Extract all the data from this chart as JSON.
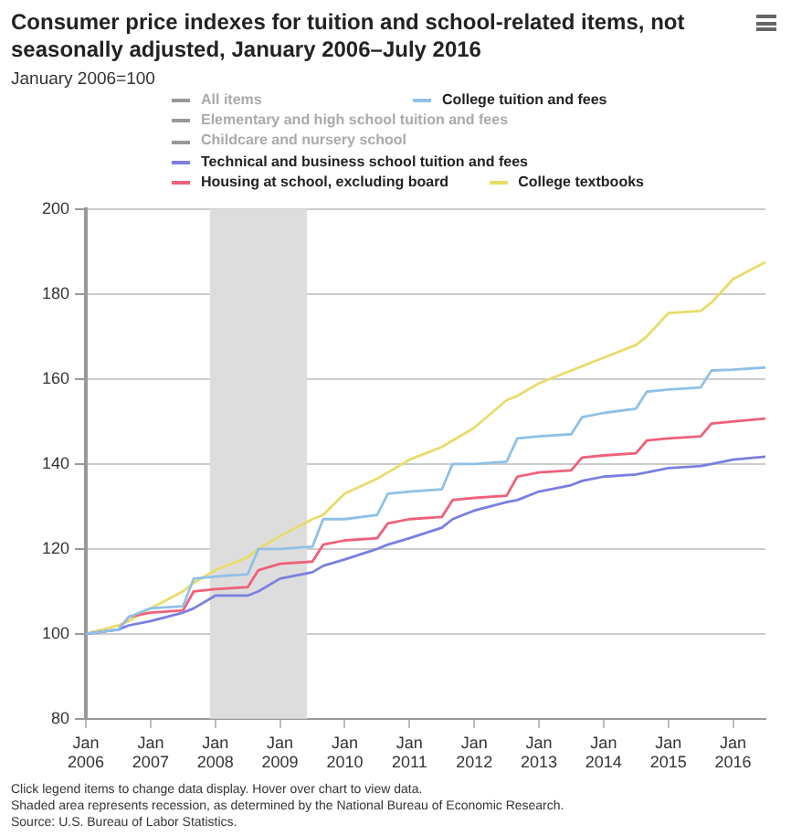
{
  "chart_data": {
    "type": "line",
    "title": "Consumer price indexes for tuition and school-related items, not seasonally adjusted, January 2006–July 2016",
    "subtitle": "January 2006=100",
    "x": [
      "2006-01",
      "2006-07",
      "2006-09",
      "2007-01",
      "2007-07",
      "2007-09",
      "2008-01",
      "2008-07",
      "2008-09",
      "2009-01",
      "2009-07",
      "2009-09",
      "2010-01",
      "2010-07",
      "2010-09",
      "2011-01",
      "2011-07",
      "2011-09",
      "2012-01",
      "2012-07",
      "2012-09",
      "2013-01",
      "2013-07",
      "2013-09",
      "2014-01",
      "2014-07",
      "2014-09",
      "2015-01",
      "2015-07",
      "2015-09",
      "2016-01",
      "2016-07"
    ],
    "series": [
      {
        "name": "All items",
        "color": "#999999",
        "values": [
          null,
          null,
          null,
          null,
          null,
          null,
          null,
          null,
          null,
          null,
          null,
          null,
          null,
          null,
          null,
          null,
          null,
          null,
          null,
          null,
          null,
          null,
          null,
          null,
          null,
          null,
          null,
          null,
          null,
          null,
          null,
          null
        ]
      },
      {
        "name": "College tuition and fees",
        "color": "#8fc1e8",
        "values": [
          100,
          101,
          104,
          106,
          106.5,
          113,
          113.5,
          114,
          120,
          120,
          120.5,
          127,
          127,
          128,
          133,
          133.5,
          134,
          140,
          140,
          140.5,
          146,
          146.5,
          147,
          151,
          152,
          153,
          157,
          157.5,
          158,
          162,
          162.2,
          162.7
        ]
      },
      {
        "name": "Elementary and high school tuition and fees",
        "color": "#999999",
        "values": [
          null,
          null,
          null,
          null,
          null,
          null,
          null,
          null,
          null,
          null,
          null,
          null,
          null,
          null,
          null,
          null,
          null,
          null,
          null,
          null,
          null,
          null,
          null,
          null,
          null,
          null,
          null,
          null,
          null,
          null,
          null,
          null
        ]
      },
      {
        "name": "Childcare and nursery school",
        "color": "#999999",
        "values": [
          null,
          null,
          null,
          null,
          null,
          null,
          null,
          null,
          null,
          null,
          null,
          null,
          null,
          null,
          null,
          null,
          null,
          null,
          null,
          null,
          null,
          null,
          null,
          null,
          null,
          null,
          null,
          null,
          null,
          null,
          null,
          null
        ]
      },
      {
        "name": "Technical and business school tuition and fees",
        "color": "#7a7fe0",
        "values": [
          100,
          101,
          102,
          103,
          105,
          106,
          109,
          109,
          110,
          113,
          114.5,
          116,
          117.5,
          120,
          121,
          122.5,
          125,
          127,
          129,
          131,
          131.5,
          133.5,
          135,
          136,
          137,
          137.5,
          138,
          139,
          139.5,
          140,
          141,
          141.7
        ]
      },
      {
        "name": "Housing at school, excluding board",
        "color": "#f0607a",
        "values": [
          100,
          101,
          104,
          105,
          105.5,
          110,
          110.5,
          111,
          115,
          116.5,
          117,
          121,
          122,
          122.5,
          126,
          127,
          127.5,
          131.5,
          132,
          132.5,
          137,
          138,
          138.5,
          141.5,
          142,
          142.5,
          145.5,
          146,
          146.5,
          149.5,
          150,
          150.7
        ]
      },
      {
        "name": "College textbooks",
        "color": "#e8dc6a",
        "values": [
          100,
          102,
          103,
          106,
          110,
          112,
          115,
          118,
          120,
          123,
          127,
          128,
          133,
          136.5,
          138,
          141,
          144,
          145.5,
          148.5,
          155,
          156,
          159,
          162,
          163,
          165,
          168,
          170,
          175.5,
          176,
          178,
          183.5,
          187.5
        ]
      }
    ],
    "xlim": [
      "2006-01",
      "2016-07"
    ],
    "xticks": [
      {
        "value": "2006-01",
        "label": "Jan 2006"
      },
      {
        "value": "2007-01",
        "label": "Jan 2007"
      },
      {
        "value": "2008-01",
        "label": "Jan 2008"
      },
      {
        "value": "2009-01",
        "label": "Jan 2009"
      },
      {
        "value": "2010-01",
        "label": "Jan 2010"
      },
      {
        "value": "2011-01",
        "label": "Jan 2011"
      },
      {
        "value": "2012-01",
        "label": "Jan 2012"
      },
      {
        "value": "2013-01",
        "label": "Jan 2013"
      },
      {
        "value": "2014-01",
        "label": "Jan 2014"
      },
      {
        "value": "2015-01",
        "label": "Jan 2015"
      },
      {
        "value": "2016-01",
        "label": "Jan 2016"
      }
    ],
    "ylim": [
      80,
      200
    ],
    "yticks": [
      80,
      100,
      120,
      140,
      160,
      180,
      200
    ],
    "bands": [
      {
        "axis": "x",
        "from": "2007-12",
        "to": "2009-06",
        "color": "#dddddd"
      }
    ],
    "grid": "y",
    "legend": "top",
    "marker": "none",
    "line_style": "solid",
    "annotations": [
      "Click legend items to change data display. Hover over chart to view data.",
      "Shaded area represents recession, as determined by the National Bureau of Economic Research.",
      "Source: U.S. Bureau of Labor Statistics."
    ]
  }
}
